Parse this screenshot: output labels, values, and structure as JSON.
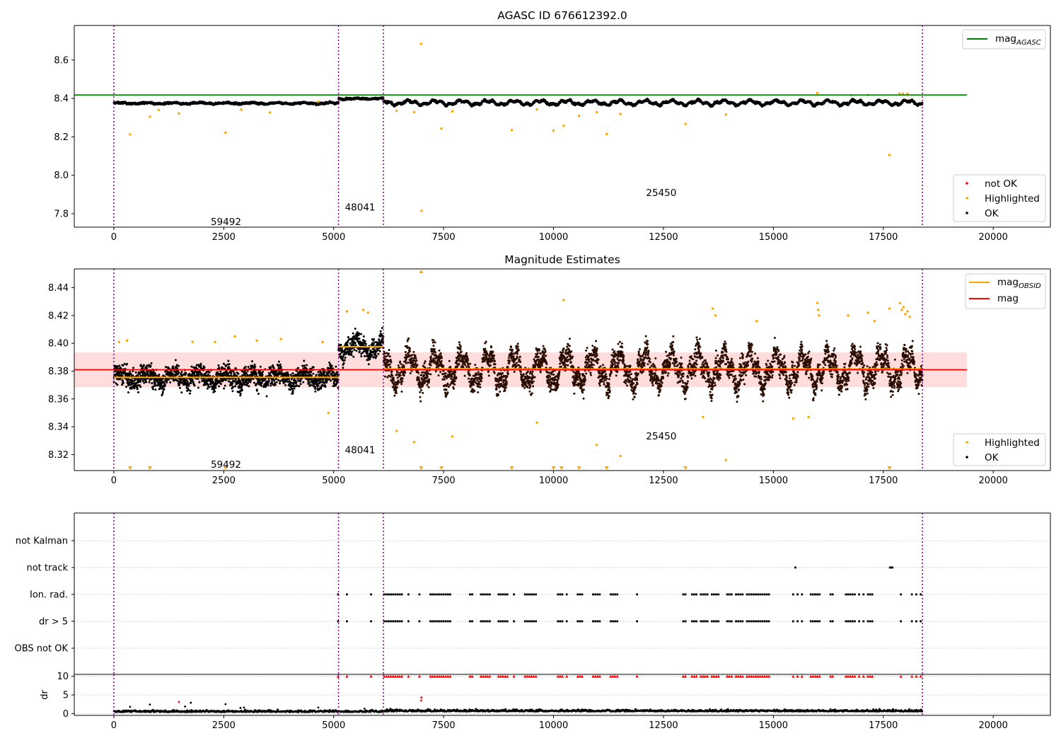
{
  "chart_data": [
    {
      "type": "scatter",
      "title": "AGASC ID 676612392.0",
      "xlim": [
        -900,
        21300
      ],
      "ylim": [
        7.73,
        8.78
      ],
      "x_ticks": [
        0,
        2500,
        5000,
        7500,
        10000,
        12500,
        15000,
        17500,
        20000
      ],
      "y_ticks": [
        7.8,
        8.0,
        8.2,
        8.4,
        8.6
      ],
      "reference_lines": [
        {
          "name": "mag_AGASC",
          "label_base": "mag",
          "label_sub": "AGASC",
          "y": 8.418,
          "x_range": [
            -900,
            19400
          ],
          "color": "#008000"
        }
      ],
      "segment_boundaries": [
        0,
        5110,
        6130,
        18390
      ],
      "segment_labels": [
        {
          "text": "59492",
          "x": 2550,
          "y": 7.76
        },
        {
          "text": "48041",
          "x": 5600,
          "y": 7.835
        },
        {
          "text": "25450",
          "x": 12450,
          "y": 7.91
        }
      ],
      "segments": [
        {
          "x_range": [
            0,
            5110
          ],
          "center": 8.375,
          "spread": 0.005,
          "wave": 0.003
        },
        {
          "x_range": [
            5110,
            6130
          ],
          "center": 8.399,
          "spread": 0.005,
          "wave": 0.002
        },
        {
          "x_range": [
            6130,
            18390
          ],
          "center": 8.378,
          "spread": 0.006,
          "wave": 0.01
        }
      ],
      "highlighted_points": {
        "x": [
          370,
          820,
          1020,
          1480,
          2540,
          2900,
          3550,
          4650,
          6430,
          6830,
          6990,
          7000,
          7450,
          7700,
          9050,
          9620,
          10000,
          10230,
          10580,
          10980,
          11210,
          11520,
          13000,
          13920,
          16000,
          16770,
          17150,
          17640,
          17870,
          17950,
          18050
        ],
        "y": [
          8.213,
          8.305,
          8.34,
          8.322,
          8.222,
          8.342,
          8.327,
          8.383,
          8.336,
          8.329,
          8.685,
          7.815,
          8.243,
          8.333,
          8.235,
          8.343,
          8.232,
          8.258,
          8.31,
          8.328,
          8.215,
          8.319,
          8.267,
          8.316,
          8.428,
          8.417,
          8.418,
          8.106,
          8.425,
          8.425,
          8.425
        ]
      },
      "legend": {
        "upper_right": [
          "mag_AGASC"
        ],
        "lower_right": [
          {
            "label": "not OK",
            "color": "#ff0000"
          },
          {
            "label": "Highlighted",
            "color": "#ffa500"
          },
          {
            "label": "OK",
            "color": "#000000"
          }
        ]
      },
      "grid": false
    },
    {
      "type": "scatter",
      "title": "Magnitude Estimates",
      "xlim": [
        -900,
        21300
      ],
      "ylim": [
        8.3085,
        8.4535
      ],
      "x_ticks": [
        0,
        2500,
        5000,
        7500,
        10000,
        12500,
        15000,
        17500,
        20000
      ],
      "y_ticks": [
        8.32,
        8.34,
        8.36,
        8.38,
        8.4,
        8.42,
        8.44
      ],
      "mag": {
        "y": 8.381,
        "band": [
          8.3685,
          8.3935
        ],
        "x_range": [
          -900,
          19400
        ],
        "color": "#ff0000",
        "band_color": "#ffdddd"
      },
      "mag_OBSID": [
        {
          "x_range": [
            0,
            5110
          ],
          "y": 8.3755
        },
        {
          "x_range": [
            5110,
            6130
          ],
          "y": 8.3975
        },
        {
          "x_range": [
            6130,
            18390
          ],
          "y": 8.3815
        }
      ],
      "segment_boundaries": [
        0,
        5110,
        6130,
        18390
      ],
      "segment_labels": [
        {
          "text": "59492",
          "x": 2550,
          "y": 8.313
        },
        {
          "text": "48041",
          "x": 5600,
          "y": 8.3235
        },
        {
          "text": "25450",
          "x": 12450,
          "y": 8.3335
        }
      ],
      "segments": [
        {
          "x_range": [
            0,
            5110
          ],
          "center": 8.3755,
          "spread": 0.008,
          "wave": 0.003
        },
        {
          "x_range": [
            5110,
            6130
          ],
          "center": 8.3975,
          "spread": 0.008,
          "wave": 0.004
        },
        {
          "x_range": [
            6130,
            18390
          ],
          "center": 8.3815,
          "spread": 0.009,
          "wave": 0.01
        }
      ],
      "highlighted_points": {
        "x": [
          120,
          300,
          1790,
          2300,
          2750,
          3250,
          3800,
          4750,
          4880,
          5300,
          5670,
          5780,
          6430,
          6830,
          7700,
          9620,
          10230,
          10980,
          11520,
          13400,
          13620,
          13680,
          13920,
          14620,
          15450,
          15800,
          16000,
          16020,
          16040,
          16700,
          17150,
          17300,
          17640,
          17880,
          17920,
          17960,
          18000,
          18050,
          18100
        ],
        "y": [
          8.401,
          8.402,
          8.401,
          8.401,
          8.405,
          8.402,
          8.403,
          8.401,
          8.35,
          8.423,
          8.424,
          8.422,
          8.337,
          8.329,
          8.333,
          8.343,
          8.431,
          8.327,
          8.319,
          8.347,
          8.425,
          8.42,
          8.316,
          8.416,
          8.346,
          8.347,
          8.429,
          8.424,
          8.42,
          8.42,
          8.422,
          8.416,
          8.425,
          8.429,
          8.424,
          8.426,
          8.421,
          8.423,
          8.419
        ]
      },
      "clipped_low_x": [
        370,
        820,
        2540,
        6990,
        7450,
        9050,
        10000,
        10180,
        10580,
        11210,
        13000,
        17640
      ],
      "clipped_high_x": [
        6990
      ],
      "legend": {
        "upper_right": [
          {
            "label_base": "mag",
            "label_sub": "OBSID",
            "color": "#ffa500"
          },
          {
            "label_base": "mag",
            "label_sub": "",
            "color": "#ff0000"
          }
        ],
        "lower_right": [
          {
            "label": "Highlighted",
            "color": "#ffa500"
          },
          {
            "label": "OK",
            "color": "#000000"
          }
        ]
      },
      "grid": false
    },
    {
      "type": "scatter",
      "title": "",
      "xlim": [
        -900,
        21300
      ],
      "categories": [
        "OBS not OK",
        "dr > 5",
        "Ion. rad.",
        "not track",
        "not Kalman"
      ],
      "segment_boundaries": [
        0,
        5110,
        6130,
        18390
      ],
      "flag_clusters": {
        "Ion. rad.": [
          5100,
          5300,
          5850,
          6150,
          6200,
          6250,
          6300,
          6350,
          6400,
          6450,
          6500,
          6550,
          6700,
          6950,
          7200,
          7250,
          7300,
          7350,
          7400,
          7450,
          7500,
          7550,
          7600,
          7650,
          8100,
          8150,
          8350,
          8400,
          8450,
          8500,
          8550,
          8750,
          8800,
          8850,
          8900,
          8950,
          9100,
          9350,
          9400,
          9450,
          9500,
          9550,
          9600,
          10100,
          10150,
          10200,
          10300,
          10550,
          10600,
          10650,
          10900,
          10950,
          11000,
          11050,
          11300,
          11350,
          11400,
          11450,
          11900,
          12950,
          13000,
          13150,
          13200,
          13250,
          13350,
          13400,
          13450,
          13500,
          13600,
          13650,
          13700,
          13750,
          13950,
          14000,
          14050,
          14150,
          14200,
          14250,
          14300,
          14400,
          14450,
          14500,
          14550,
          14600,
          14650,
          14700,
          14750,
          14800,
          14850,
          14900,
          15450,
          15550,
          15650,
          15850,
          15900,
          15950,
          16000,
          16050,
          16300,
          16350,
          16650,
          16700,
          16750,
          16800,
          16850,
          16950,
          17050,
          17150,
          17200,
          17250,
          17900,
          18150,
          18250,
          18350
        ],
        "dr > 5": [
          5100,
          5300,
          5850,
          6150,
          6200,
          6250,
          6300,
          6350,
          6400,
          6450,
          6500,
          6550,
          6700,
          6950,
          7200,
          7250,
          7300,
          7350,
          7400,
          7450,
          7500,
          7550,
          7600,
          7650,
          8100,
          8150,
          8350,
          8400,
          8450,
          8500,
          8550,
          8750,
          8800,
          8850,
          8900,
          8950,
          9100,
          9350,
          9400,
          9450,
          9500,
          9550,
          9600,
          10100,
          10150,
          10200,
          10300,
          10550,
          10600,
          10650,
          10900,
          10950,
          11000,
          11050,
          11300,
          11350,
          11400,
          11450,
          11900,
          12950,
          13000,
          13150,
          13200,
          13250,
          13350,
          13400,
          13450,
          13500,
          13600,
          13650,
          13700,
          13750,
          13950,
          14000,
          14050,
          14150,
          14200,
          14250,
          14300,
          14400,
          14450,
          14500,
          14550,
          14600,
          14650,
          14700,
          14750,
          14800,
          14850,
          14900,
          15450,
          15550,
          15650,
          15850,
          15900,
          15950,
          16000,
          16050,
          16300,
          16350,
          16650,
          16700,
          16750,
          16800,
          16850,
          16950,
          17050,
          17150,
          17200,
          17250,
          17900,
          18150,
          18250,
          18350
        ],
        "not track": [
          15500,
          17650,
          17680,
          17710
        ]
      },
      "grid": true
    },
    {
      "type": "scatter",
      "title": "",
      "ylabel": "dr",
      "xlim": [
        -900,
        21300
      ],
      "ylim": [
        -0.5,
        10.5
      ],
      "x_ticks": [
        0,
        2500,
        5000,
        7500,
        10000,
        12500,
        15000,
        17500,
        20000
      ],
      "y_ticks": [
        0,
        5,
        10
      ],
      "segment_boundaries": [
        0,
        5110,
        6130,
        18390
      ],
      "baseline": {
        "center": 0.4,
        "spread": 0.25
      },
      "scattered_points": {
        "x": [
          370,
          820,
          1480,
          1620,
          1750,
          2540,
          2880,
          2960,
          4650,
          5700,
          6990,
          6995
        ],
        "y": [
          1.8,
          2.4,
          3.1,
          1.9,
          2.9,
          2.5,
          1.5,
          1.6,
          1.6,
          1.3,
          3.5,
          4.3
        ],
        "colors": [
          "#000000",
          "#000000",
          "#ff0000",
          "#000000",
          "#000000",
          "#000000",
          "#000000",
          "#000000",
          "#000000",
          "#000000",
          "#ff0000",
          "#ff0000"
        ]
      },
      "capped_value": 10,
      "capped_color": "#ff0000",
      "grid": true
    }
  ]
}
